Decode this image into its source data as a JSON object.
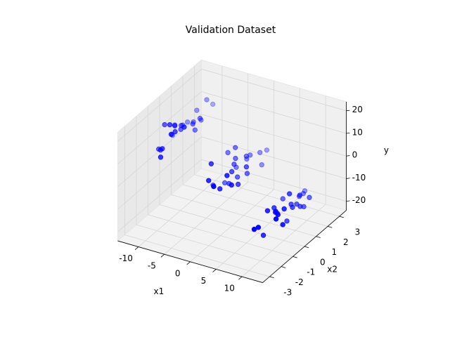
{
  "chart_data": {
    "type": "scatter3d",
    "title": "Validation Dataset",
    "xlabel": "x1",
    "ylabel": "x2",
    "zlabel": "y",
    "color": "blue",
    "xlim": [
      -14,
      14
    ],
    "ylim": [
      -3.6,
      3.6
    ],
    "zlim": [
      -24,
      24
    ],
    "xticks": [
      -10,
      -5,
      0,
      5,
      10
    ],
    "yticks": [
      -3,
      -2,
      -1,
      0,
      1,
      2,
      3
    ],
    "zticks": [
      -20,
      -10,
      0,
      10,
      20
    ],
    "grid": true,
    "x": [
      -10.5,
      -9.2,
      -11.3,
      -8.7,
      -10.1,
      -12.0,
      -9.6,
      -10.8,
      -8.2,
      -11.7,
      -9.9,
      -10.4,
      -7.9,
      -11.1,
      -9.3,
      -12.4,
      -10.6,
      -8.9,
      -10.0,
      -11.5,
      -9.1,
      -10.9,
      -8.5,
      -11.9,
      -9.7,
      0.4,
      -1.2,
      1.5,
      -0.3,
      2.1,
      -2.3,
      0.9,
      -0.7,
      1.8,
      -1.6,
      0.1,
      2.6,
      -0.9,
      1.1,
      -2.0,
      0.6,
      -0.1,
      1.4,
      -1.4,
      0.3,
      2.3,
      -2.6,
      0.8,
      -0.5,
      1.7,
      10.3,
      9.1,
      11.4,
      8.8,
      10.7,
      12.1,
      9.5,
      10.0,
      8.3,
      11.8,
      9.8,
      10.6,
      7.8,
      11.2,
      9.4,
      12.5,
      10.2,
      8.9,
      10.9,
      11.6,
      9.2,
      10.4,
      8.6,
      11.0,
      9.9
    ],
    "y": [
      0.3,
      -0.8,
      1.2,
      0.5,
      -1.5,
      0.1,
      2.1,
      -0.4,
      0.9,
      -1.1,
      0.0,
      1.6,
      -0.6,
      0.7,
      -2.0,
      0.4,
      -0.2,
      1.3,
      -0.9,
      0.2,
      2.4,
      -1.3,
      0.6,
      -0.5,
      1.0,
      -0.2,
      0.9,
      -1.1,
      1.4,
      0.3,
      -0.6,
      2.0,
      -1.7,
      0.5,
      1.0,
      -0.3,
      -1.2,
      0.7,
      2.5,
      -0.9,
      0.2,
      1.6,
      -2.2,
      0.0,
      1.1,
      -0.5,
      0.8,
      -1.4,
      0.4,
      1.8,
      0.5,
      -1.0,
      1.1,
      -0.3,
      0.8,
      -1.6,
      1.9,
      -0.7,
      0.2,
      1.4,
      -2.1,
      0.0,
      0.9,
      -0.5,
      1.6,
      -1.2,
      0.4,
      2.3,
      -0.9,
      0.7,
      -1.4,
      1.2,
      -0.1,
      0.3,
      -2.5
    ],
    "z": [
      12,
      15,
      9,
      13,
      10,
      8,
      16,
      11,
      14,
      7,
      12,
      13,
      17,
      10,
      9,
      6,
      14,
      11,
      18,
      12,
      13,
      8,
      10,
      15,
      11,
      1,
      -3,
      4,
      -1,
      2,
      -5,
      0,
      3,
      -2,
      5,
      -4,
      1,
      2,
      -1,
      6,
      -3,
      0,
      4,
      -6,
      2,
      -2,
      3,
      -1,
      1,
      -4,
      -10,
      -7,
      -13,
      -9,
      -11,
      -6,
      -12,
      -8,
      -14,
      -10,
      -9,
      -15,
      -11,
      -7,
      -12,
      -10,
      -5,
      -13,
      -8,
      -11,
      -16,
      -9,
      -12,
      -10,
      -8
    ]
  }
}
